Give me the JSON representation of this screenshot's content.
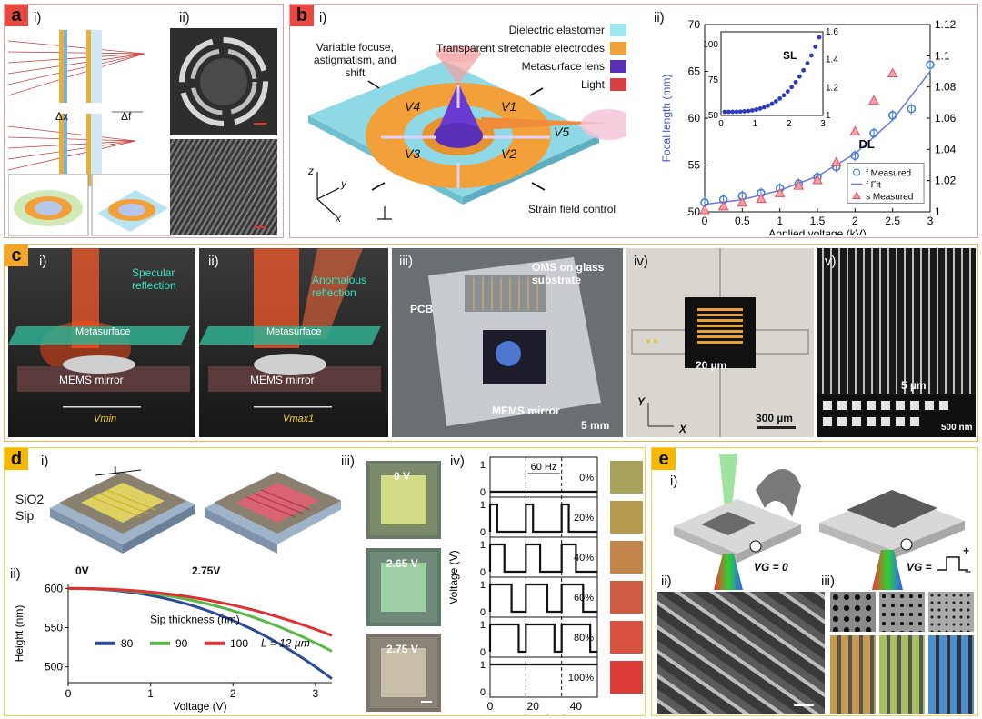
{
  "panel_a": {
    "badge": "a",
    "sub_i": "i)",
    "sub_ii": "ii)",
    "delta_x": "Δx",
    "delta_f": "Δf"
  },
  "panel_b": {
    "badge": "b",
    "sub_i": "i)",
    "sub_ii": "ii)",
    "legend": [
      {
        "label": "Dielectric elastomer",
        "color": "#9fe7ee"
      },
      {
        "label": "Transparent stretchable electrodes",
        "color": "#f2a13a"
      },
      {
        "label": "Metasurface lens",
        "color": "#5a2fb8"
      },
      {
        "label": "Light",
        "color": "#d64040"
      }
    ],
    "caption_variable": "Variable focuse,\nastigmatism, and\nshift",
    "electrodes": [
      "V4",
      "V1",
      "V3",
      "V2",
      "V5"
    ],
    "strain": "Strain field control",
    "axis_z": "z",
    "axis_y": "y",
    "axis_x": "x"
  },
  "chart_data": {
    "type": "scatter",
    "xlabel": "Applied voltage (kV)",
    "ylabel": "Focal length (mm)",
    "xlim": [
      0,
      3
    ],
    "ylim": [
      50,
      70
    ],
    "y2lim": [
      1,
      1.12
    ],
    "xticks": [
      "0",
      "0.5",
      "1",
      "1.5",
      "2",
      "2.5",
      "3"
    ],
    "yticks": [
      "50",
      "55",
      "60",
      "65",
      "70"
    ],
    "y2ticks": [
      "1",
      "1.02",
      "1.04",
      "1.06",
      "1.08",
      "1.1",
      "1.12"
    ],
    "annotation_dl": "DL",
    "series": [
      {
        "name": "f Measured",
        "x": [
          0,
          0.25,
          0.5,
          0.75,
          1,
          1.25,
          1.5,
          1.75,
          2,
          2.25,
          2.5,
          2.75,
          3
        ],
        "y": [
          51.0,
          51.3,
          51.7,
          52.0,
          52.5,
          53.0,
          53.7,
          54.8,
          56.0,
          58.4,
          60.3,
          61.0,
          65.7
        ]
      },
      {
        "name": "f Fit",
        "x": [
          0,
          0.5,
          1,
          1.5,
          2,
          2.5,
          3
        ],
        "y": [
          50.8,
          51.3,
          52.3,
          53.8,
          56.2,
          59.8,
          65.0
        ]
      },
      {
        "name": "s Measured",
        "x": [
          0,
          0.25,
          0.5,
          0.75,
          1,
          1.25,
          1.5,
          1.75,
          2,
          2.25,
          2.5
        ],
        "y": [
          50.2,
          50.6,
          51.0,
          51.4,
          52.0,
          52.8,
          53.4,
          55.3,
          58.6,
          61.9,
          64.8
        ]
      }
    ],
    "inset": {
      "annotation": "SL",
      "xticks": [
        "0",
        "1",
        "2",
        "3"
      ],
      "yticks": [
        "50",
        "75",
        "100"
      ],
      "y2ticks": [
        "1",
        "1.2",
        "1.4",
        "1.6"
      ]
    }
  },
  "panel_c": {
    "badge": "c",
    "subs": [
      "i)",
      "ii)",
      "iii)",
      "iv)",
      "v)"
    ],
    "specular": "Specular\nreflection",
    "anomalous": "Anomalous\nreflection",
    "metasurface": "Metasurface",
    "mems": "MEMS mirror",
    "vmin": "Vmin",
    "vmax": "Vmax1",
    "pcb": "PCB",
    "oms": "OMS on glass\nsubstrate",
    "mems_mirror": "MEMS mirror",
    "scale_5mm": "5 mm",
    "scale_20um": "20 µm",
    "scale_300um": "300 µm",
    "axis_y": "Y",
    "axis_x": "X",
    "scale_5um": "5 µm",
    "scale_500nm": "500 nm"
  },
  "panel_d": {
    "badge": "d",
    "sub_i": "i)",
    "sub_ii": "ii)",
    "sub_iii": "iii)",
    "sub_iv": "iv)",
    "L": "L",
    "sio2": "SiO2",
    "sip": "Sip",
    "v0": "0V",
    "v275": "2.75V",
    "height_chart": {
      "type": "line",
      "xlabel": "Voltage (V)",
      "ylabel": "Height (nm)",
      "xticks": [
        "0",
        "1",
        "2",
        "3"
      ],
      "yticks": [
        "500",
        "550",
        "600"
      ],
      "legend_title": "Sip thickness (nm)",
      "note": "L = 12 µm",
      "series": [
        {
          "name": "80",
          "color": "#2b4a9a"
        },
        {
          "name": "90",
          "color": "#58b948"
        },
        {
          "name": "100",
          "color": "#e03030"
        }
      ]
    },
    "swatch_labels": [
      "0 V",
      "2.65 V",
      "2.75 V"
    ],
    "pulse_chart": {
      "ylabel": "Voltage (V)",
      "xlabel": "time (ms)",
      "xticks": [
        "0",
        "20",
        "40"
      ],
      "freq": "60 Hz",
      "duties": [
        "0%",
        "20%",
        "40%",
        "60%",
        "80%",
        "100%"
      ],
      "duty_colors": [
        "#a8a25a",
        "#b69a4e",
        "#c28449",
        "#cf5c42",
        "#d9523f",
        "#dc3b38"
      ]
    }
  },
  "panel_e": {
    "badge": "e",
    "sub_i": "i)",
    "sub_ii": "ii)",
    "sub_iii": "iii)",
    "vg0": "VG = 0",
    "vg": "VG =",
    "plus": "+",
    "minus": "–"
  }
}
